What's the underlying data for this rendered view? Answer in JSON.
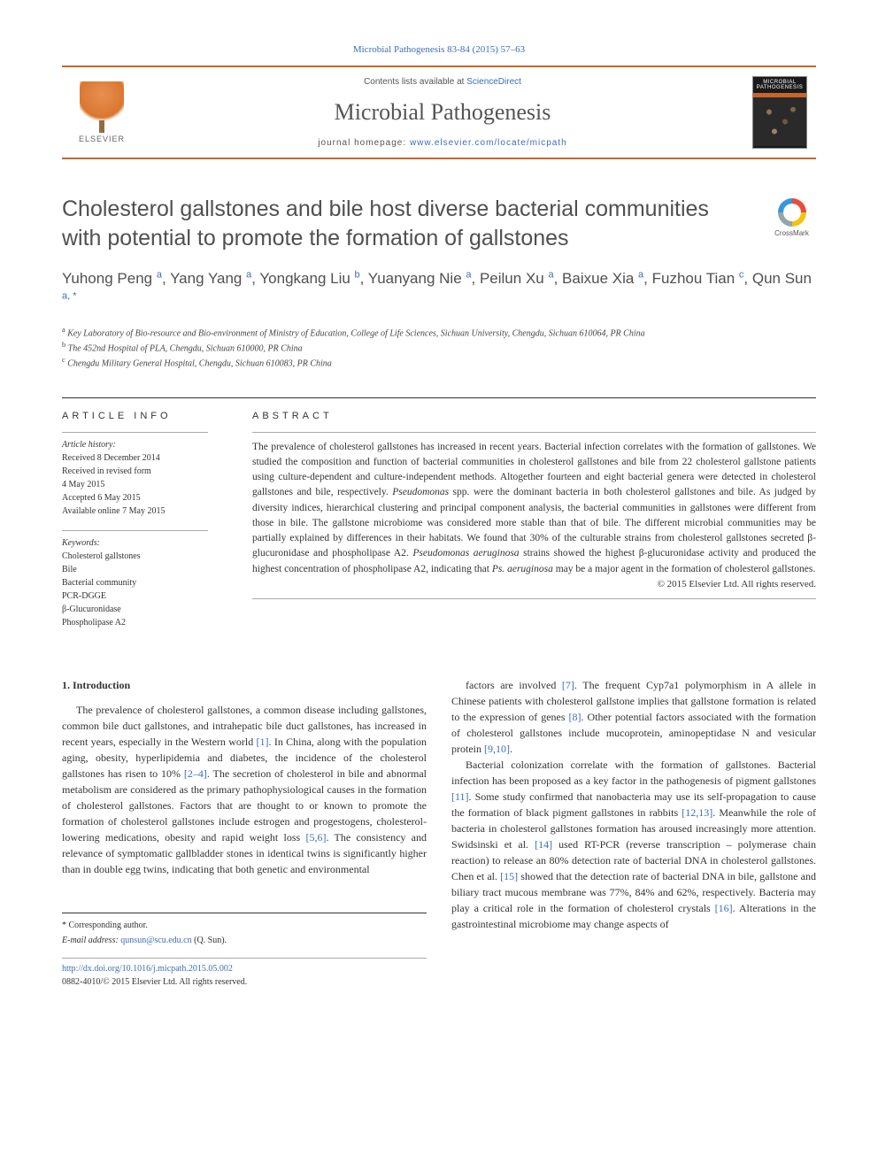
{
  "citation": "Microbial Pathogenesis 83-84 (2015) 57–63",
  "header": {
    "contents_prefix": "Contents lists available at ",
    "contents_link": "ScienceDirect",
    "journal_name": "Microbial Pathogenesis",
    "homepage_prefix": "journal homepage: ",
    "homepage_url": "www.elsevier.com/locate/micpath",
    "publisher": "ELSEVIER",
    "cover_title": "MICROBIAL PATHOGENESIS"
  },
  "crossmark_label": "CrossMark",
  "title": "Cholesterol gallstones and bile host diverse bacterial communities with potential to promote the formation of gallstones",
  "authors_html": "Yuhong Peng <sup>a</sup>, Yang Yang <sup>a</sup>, Yongkang Liu <sup>b</sup>, Yuanyang Nie <sup>a</sup>, Peilun Xu <sup>a</sup>, Baixue Xia <sup>a</sup>, Fuzhou Tian <sup>c</sup>, Qun Sun <sup>a, <span class='author-star'>*</span></sup>",
  "affiliations": [
    {
      "marker": "a",
      "text": "Key Laboratory of Bio-resource and Bio-environment of Ministry of Education, College of Life Sciences, Sichuan University, Chengdu, Sichuan 610064, PR China"
    },
    {
      "marker": "b",
      "text": "The 452nd Hospital of PLA, Chengdu, Sichuan 610000, PR China"
    },
    {
      "marker": "c",
      "text": "Chengdu Military General Hospital, Chengdu, Sichuan 610083, PR China"
    }
  ],
  "article_info": {
    "heading": "ARTICLE INFO",
    "history_head": "Article history:",
    "history": [
      "Received 8 December 2014",
      "Received in revised form",
      "4 May 2015",
      "Accepted 6 May 2015",
      "Available online 7 May 2015"
    ],
    "keywords_head": "Keywords:",
    "keywords": [
      "Cholesterol gallstones",
      "Bile",
      "Bacterial community",
      "PCR-DGGE",
      "β-Glucuronidase",
      "Phospholipase A2"
    ]
  },
  "abstract": {
    "heading": "ABSTRACT",
    "text": "The prevalence of cholesterol gallstones has increased in recent years. Bacterial infection correlates with the formation of gallstones. We studied the composition and function of bacterial communities in cholesterol gallstones and bile from 22 cholesterol gallstone patients using culture-dependent and culture-independent methods. Altogether fourteen and eight bacterial genera were detected in cholesterol gallstones and bile, respectively. Pseudomonas spp. were the dominant bacteria in both cholesterol gallstones and bile. As judged by diversity indices, hierarchical clustering and principal component analysis, the bacterial communities in gallstones were different from those in bile. The gallstone microbiome was considered more stable than that of bile. The different microbial communities may be partially explained by differences in their habitats. We found that 30% of the culturable strains from cholesterol gallstones secreted β-glucuronidase and phospholipase A2. Pseudomonas aeruginosa strains showed the highest β-glucuronidase activity and produced the highest concentration of phospholipase A2, indicating that Ps. aeruginosa may be a major agent in the formation of cholesterol gallstones.",
    "copyright": "© 2015 Elsevier Ltd. All rights reserved."
  },
  "body": {
    "section_heading": "1. Introduction",
    "col1_p1": "The prevalence of cholesterol gallstones, a common disease including gallstones, common bile duct gallstones, and intrahepatic bile duct gallstones, has increased in recent years, especially in the Western world [1]. In China, along with the population aging, obesity, hyperlipidemia and diabetes, the incidence of the cholesterol gallstones has risen to 10% [2–4]. The secretion of cholesterol in bile and abnormal metabolism are considered as the primary pathophysiological causes in the formation of cholesterol gallstones. Factors that are thought to or known to promote the formation of cholesterol gallstones include estrogen and progestogens, cholesterol-lowering medications, obesity and rapid weight loss [5,6]. The consistency and relevance of symptomatic gallbladder stones in identical twins is significantly higher than in double egg twins, indicating that both genetic and environmental",
    "col2_p1": "factors are involved [7]. The frequent Cyp7a1 polymorphism in A allele in Chinese patients with cholesterol gallstone implies that gallstone formation is related to the expression of genes [8]. Other potential factors associated with the formation of cholesterol gallstones include mucoprotein, aminopeptidase N and vesicular protein [9,10].",
    "col2_p2": "Bacterial colonization correlate with the formation of gallstones. Bacterial infection has been proposed as a key factor in the pathogenesis of pigment gallstones [11]. Some study confirmed that nanobacteria may use its self-propagation to cause the formation of black pigment gallstones in rabbits [12,13]. Meanwhile the role of bacteria in cholesterol gallstones formation has aroused increasingly more attention. Swidsinski et al. [14] used RT-PCR (reverse transcription – polymerase chain reaction) to release an 80% detection rate of bacterial DNA in cholesterol gallstones. Chen et al. [15] showed that the detection rate of bacterial DNA in bile, gallstone and biliary tract mucous membrane was 77%, 84% and 62%, respectively. Bacteria may play a critical role in the formation of cholesterol crystals [16]. Alterations in the gastrointestinal microbiome may change aspects of"
  },
  "footer": {
    "corr": "* Corresponding author.",
    "email_label": "E-mail address: ",
    "email": "qunsun@scu.edu.cn",
    "email_person": " (Q. Sun).",
    "doi": "http://dx.doi.org/10.1016/j.micpath.2015.05.002",
    "issn_line": "0882-4010/© 2015 Elsevier Ltd. All rights reserved."
  },
  "colors": {
    "accent_orange": "#c8652e",
    "link_blue": "#3b6fb6",
    "text_gray": "#505050",
    "body_text": "#333333",
    "border_light": "#aaaaaa",
    "border_dark": "#333333"
  }
}
